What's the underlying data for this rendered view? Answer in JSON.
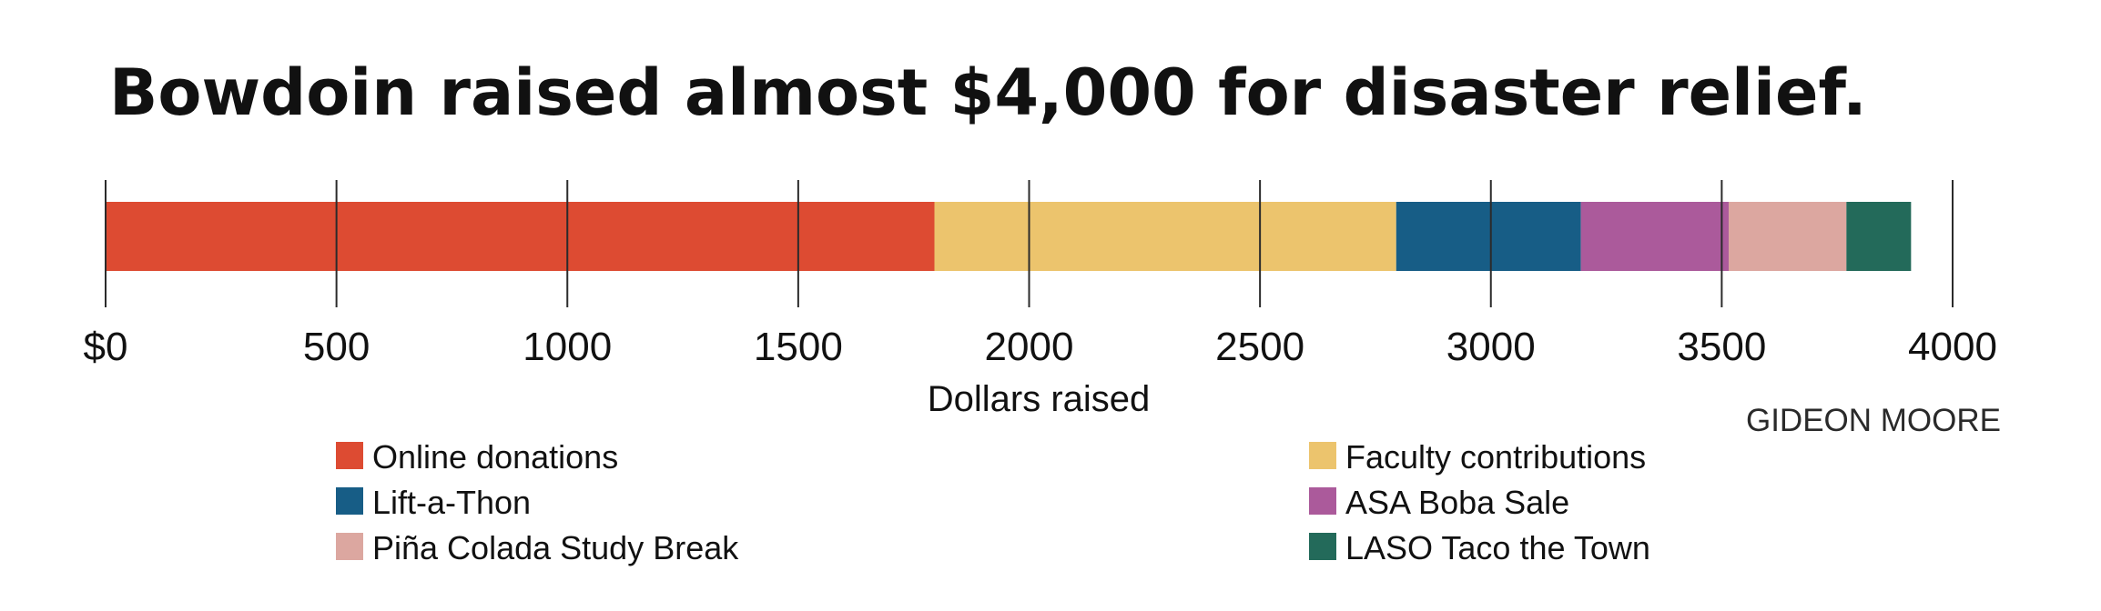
{
  "credit": "GIDEON MOORE",
  "chart_data": {
    "type": "bar",
    "orientation": "horizontal-stacked",
    "title": "Bowdoin raised almost $4,000 for disaster relief.",
    "xlabel": "Dollars raised",
    "ylabel": "",
    "xlim": [
      0,
      4000
    ],
    "x_ticks": [
      0,
      500,
      1000,
      1500,
      2000,
      2500,
      3000,
      3500,
      4000
    ],
    "x_tick_labels": [
      "$0",
      "500",
      "1000",
      "1500",
      "2000",
      "2500",
      "3000",
      "3500",
      "4000"
    ],
    "grid": true,
    "legend_position": "bottom",
    "series": [
      {
        "name": "Online donations",
        "value": 1795,
        "color": "#dd4b32"
      },
      {
        "name": "Faculty contributions",
        "value": 1000,
        "color": "#ecc46d"
      },
      {
        "name": "Lift-a-Thon",
        "value": 400,
        "color": "#175d86"
      },
      {
        "name": "ASA Boba Sale",
        "value": 320,
        "color": "#ab5a9b"
      },
      {
        "name": "Piña Colada Study Break",
        "value": 255,
        "color": "#dca7a0"
      },
      {
        "name": "LASO Taco the Town",
        "value": 140,
        "color": "#236a5a"
      }
    ]
  }
}
